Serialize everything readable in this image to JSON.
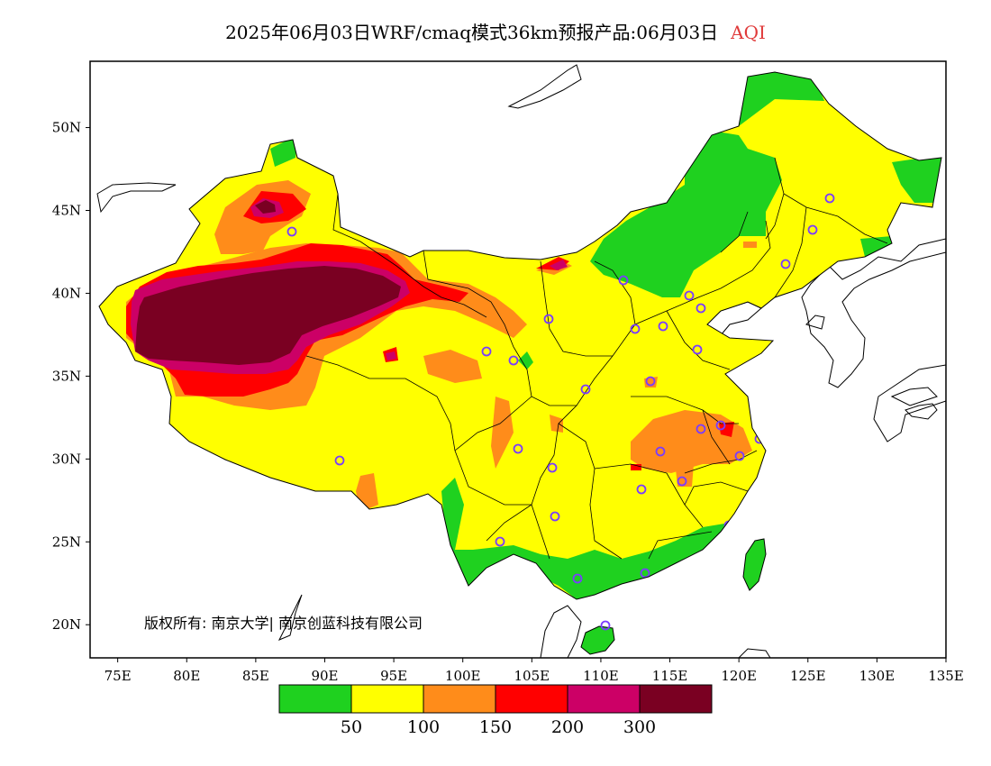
{
  "title": {
    "text": "2025年06月03日WRF/cmaq模式36km预报产品:06月03日",
    "highlight": "AQI"
  },
  "copyright": "版权所有: 南京大学| 南京创蓝科技有限公司",
  "axes": {
    "lon_labels": [
      "75E",
      "80E",
      "85E",
      "90E",
      "95E",
      "100E",
      "105E",
      "110E",
      "115E",
      "120E",
      "125E",
      "130E",
      "135E"
    ],
    "lat_labels": [
      "50N",
      "45N",
      "40N",
      "35N",
      "30N",
      "25N",
      "20N"
    ],
    "lon_range": [
      73,
      135
    ],
    "lat_range": [
      18,
      54
    ]
  },
  "legend": {
    "thresholds": [
      "50",
      "100",
      "150",
      "200",
      "300"
    ],
    "colors": [
      "#1fd11f",
      "#ffff00",
      "#ff8c1a",
      "#ff0000",
      "#cc0066",
      "#7a0022"
    ]
  },
  "colors": {
    "good": "#1fd11f",
    "moderate": "#ffff00",
    "usg": "#ff8c1a",
    "unhealthy": "#ff0000",
    "very_unhealthy": "#cc0066",
    "hazardous": "#7a0022",
    "station_marker": "#7a3cff"
  }
}
